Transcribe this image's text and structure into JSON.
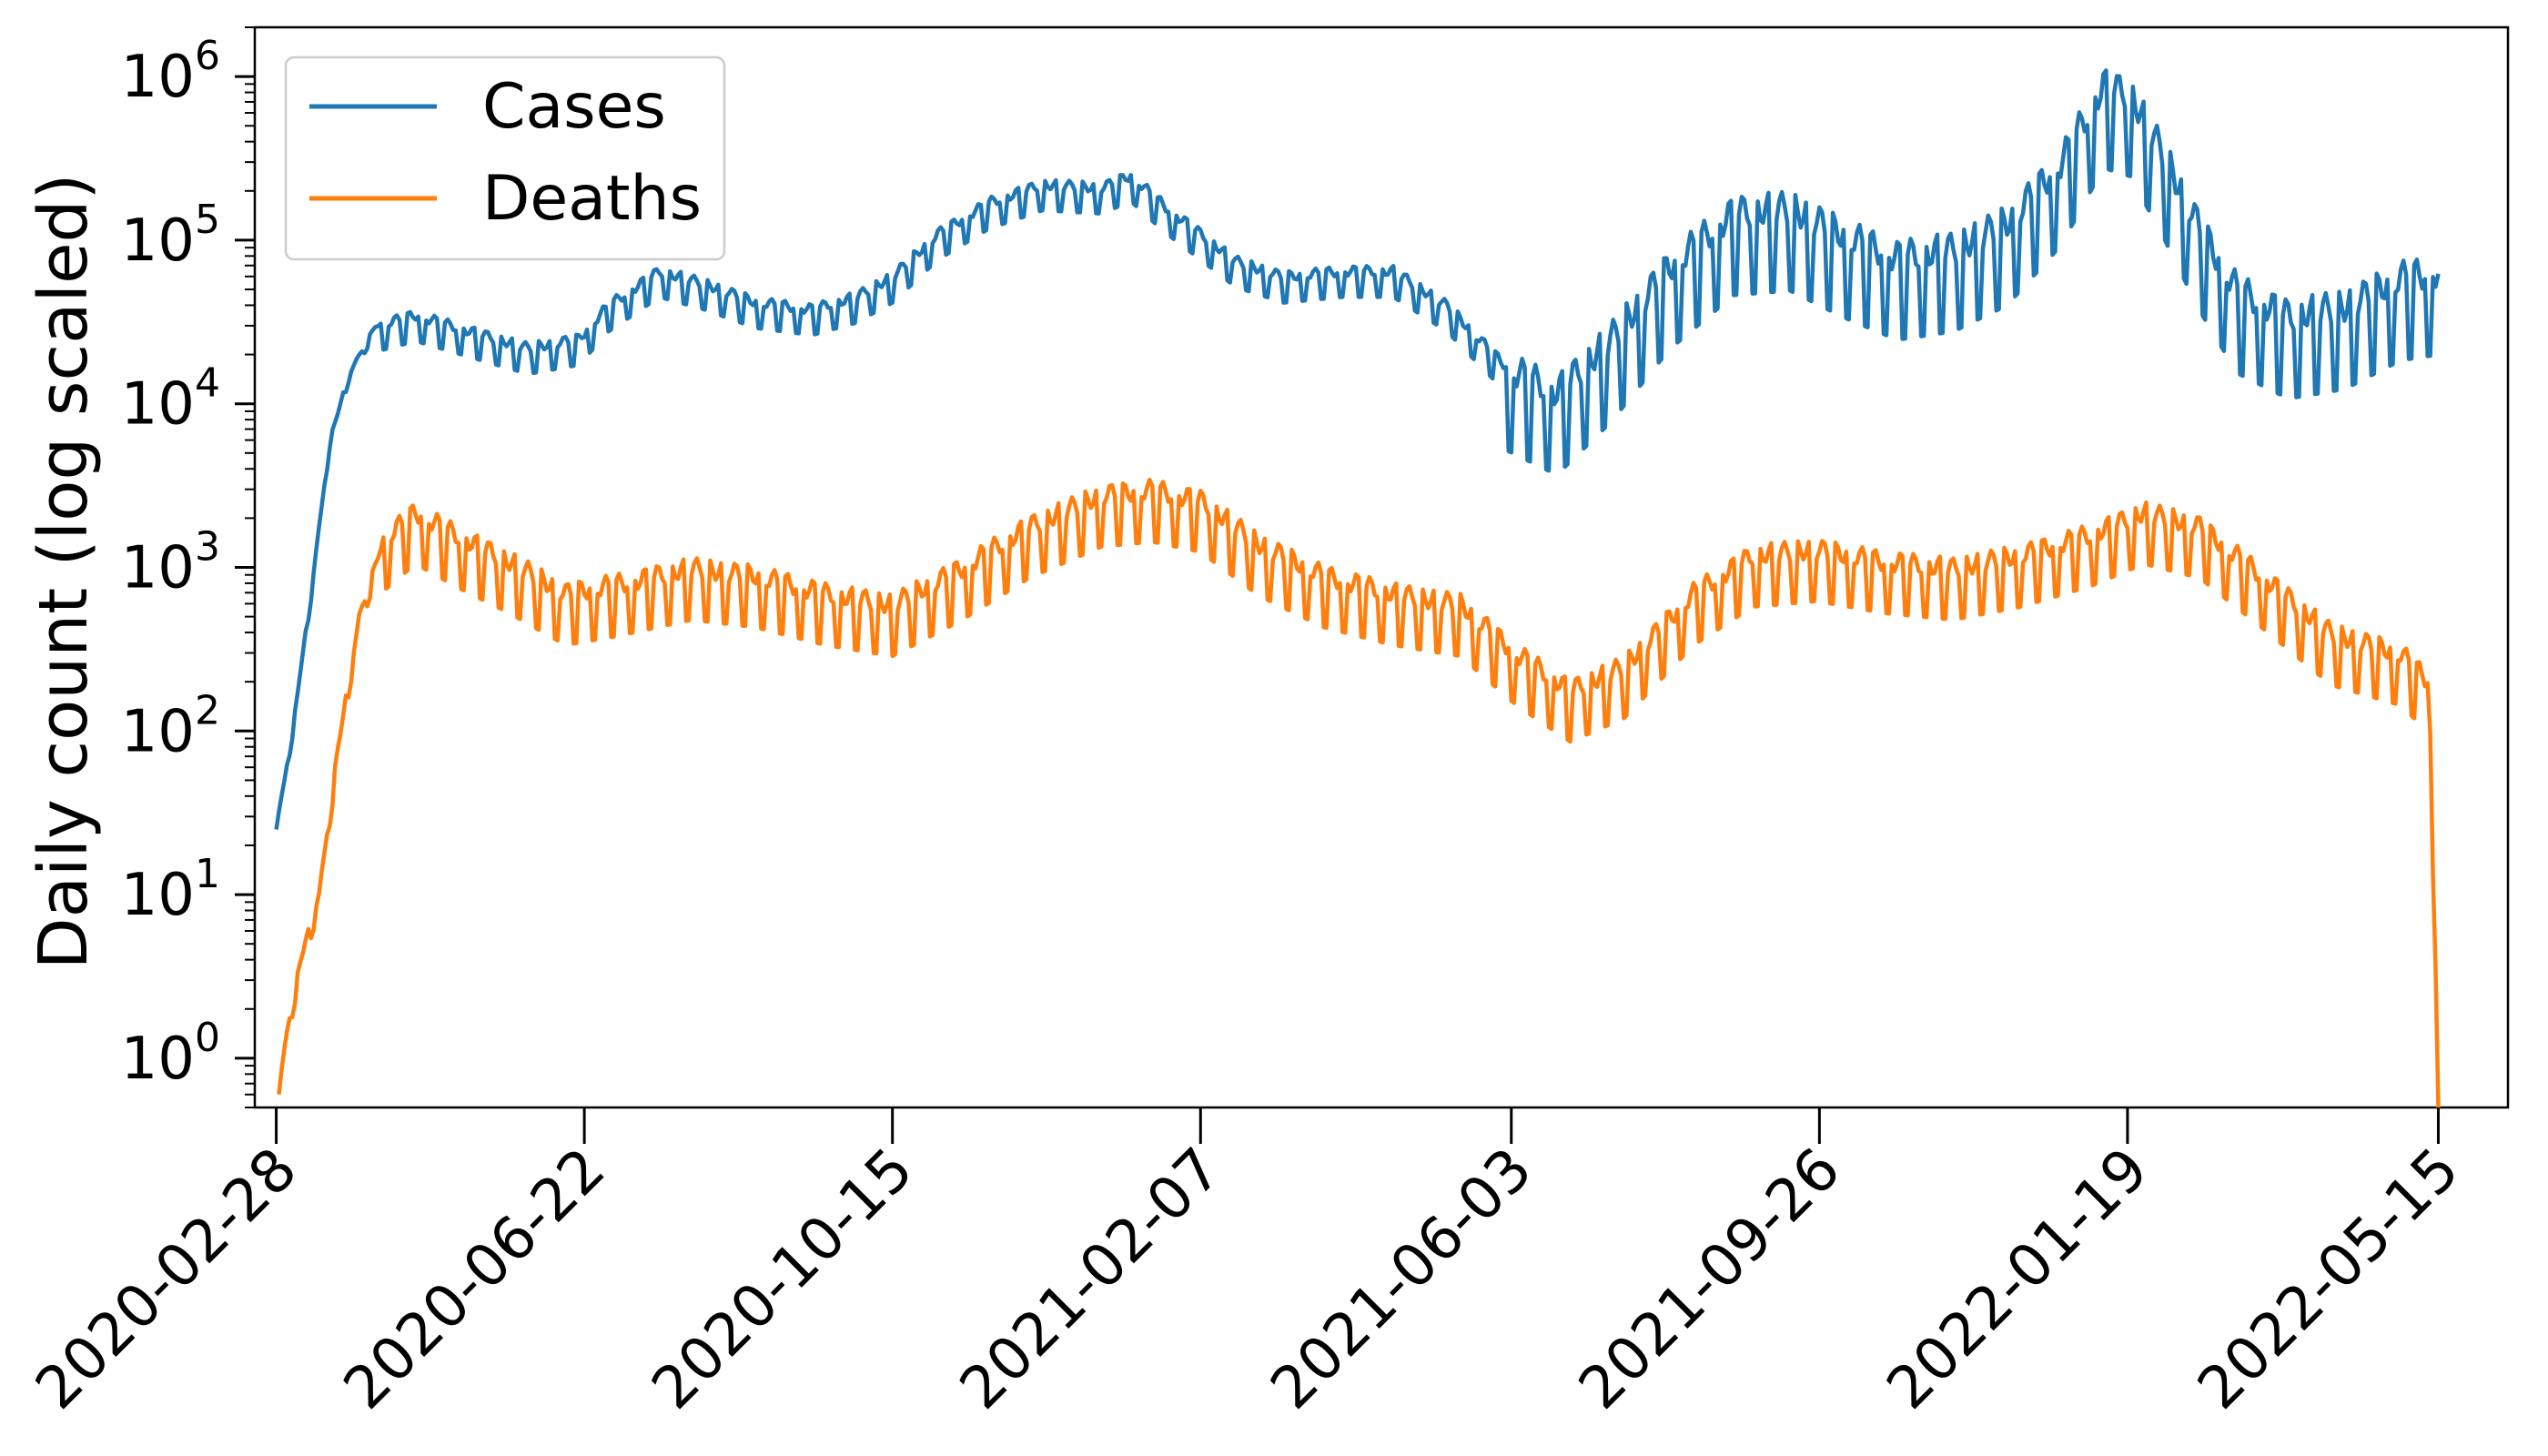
{
  "chart_data": {
    "type": "line",
    "ylabel": "Daily count (log scaled)",
    "xlabel": "",
    "y_scale": "log",
    "ylim": [
      0.5,
      2000000
    ],
    "xlim": [
      "2020-02-20",
      "2022-06-10"
    ],
    "x_ticks": [
      "2020-02-28",
      "2020-06-22",
      "2020-10-15",
      "2021-02-07",
      "2021-06-03",
      "2021-09-26",
      "2022-01-19",
      "2022-05-15"
    ],
    "y_ticks": [
      {
        "value": 1,
        "base": "10",
        "exp": "0"
      },
      {
        "value": 10,
        "base": "10",
        "exp": "1"
      },
      {
        "value": 100,
        "base": "10",
        "exp": "2"
      },
      {
        "value": 1000,
        "base": "10",
        "exp": "3"
      },
      {
        "value": 10000,
        "base": "10",
        "exp": "4"
      },
      {
        "value": 100000,
        "base": "10",
        "exp": "5"
      },
      {
        "value": 1000000,
        "base": "10",
        "exp": "6"
      }
    ],
    "grid": false,
    "legend_position": "top-left",
    "series": [
      {
        "name": "Cases",
        "color": "#1f77b4",
        "points": [
          [
            "2020-02-28",
            25
          ],
          [
            "2020-03-05",
            100
          ],
          [
            "2020-03-12",
            700
          ],
          [
            "2020-03-19",
            6000
          ],
          [
            "2020-03-26",
            15000
          ],
          [
            "2020-04-05",
            30000
          ],
          [
            "2020-04-20",
            35000
          ],
          [
            "2020-05-10",
            28000
          ],
          [
            "2020-06-01",
            22000
          ],
          [
            "2020-06-20",
            25000
          ],
          [
            "2020-07-01",
            40000
          ],
          [
            "2020-07-20",
            65000
          ],
          [
            "2020-08-05",
            55000
          ],
          [
            "2020-08-25",
            42000
          ],
          [
            "2020-09-15",
            38000
          ],
          [
            "2020-10-01",
            45000
          ],
          [
            "2020-10-15",
            60000
          ],
          [
            "2020-11-01",
            110000
          ],
          [
            "2020-11-20",
            170000
          ],
          [
            "2020-12-10",
            220000
          ],
          [
            "2021-01-01",
            210000
          ],
          [
            "2021-01-12",
            250000
          ],
          [
            "2021-01-25",
            160000
          ],
          [
            "2021-02-07",
            110000
          ],
          [
            "2021-02-20",
            75000
          ],
          [
            "2021-03-10",
            60000
          ],
          [
            "2021-04-01",
            65000
          ],
          [
            "2021-04-20",
            65000
          ],
          [
            "2021-05-10",
            40000
          ],
          [
            "2021-06-01",
            17000
          ],
          [
            "2021-06-20",
            12000
          ],
          [
            "2021-07-10",
            25000
          ],
          [
            "2021-08-01",
            70000
          ],
          [
            "2021-08-25",
            150000
          ],
          [
            "2021-09-15",
            160000
          ],
          [
            "2021-10-05",
            110000
          ],
          [
            "2021-10-25",
            80000
          ],
          [
            "2021-11-15",
            90000
          ],
          [
            "2021-12-05",
            130000
          ],
          [
            "2021-12-25",
            300000
          ],
          [
            "2022-01-10",
            900000
          ],
          [
            "2022-01-20",
            800000
          ],
          [
            "2022-02-01",
            350000
          ],
          [
            "2022-02-15",
            120000
          ],
          [
            "2022-03-01",
            50000
          ],
          [
            "2022-03-20",
            35000
          ],
          [
            "2022-04-10",
            40000
          ],
          [
            "2022-05-01",
            60000
          ],
          [
            "2022-05-15",
            65000
          ]
        ]
      },
      {
        "name": "Deaths",
        "color": "#ff7f0e",
        "points": [
          [
            "2020-02-29",
            0.6
          ],
          [
            "2020-03-03",
            1.5
          ],
          [
            "2020-03-08",
            4
          ],
          [
            "2020-03-15",
            10
          ],
          [
            "2020-03-22",
            80
          ],
          [
            "2020-03-30",
            500
          ],
          [
            "2020-04-08",
            1500
          ],
          [
            "2020-04-20",
            2200
          ],
          [
            "2020-05-05",
            1600
          ],
          [
            "2020-05-25",
            1100
          ],
          [
            "2020-06-15",
            700
          ],
          [
            "2020-07-05",
            800
          ],
          [
            "2020-08-01",
            1000
          ],
          [
            "2020-08-25",
            900
          ],
          [
            "2020-09-20",
            700
          ],
          [
            "2020-10-15",
            600
          ],
          [
            "2020-11-10",
            1000
          ],
          [
            "2020-12-05",
            1800
          ],
          [
            "2021-01-01",
            2800
          ],
          [
            "2021-01-20",
            3000
          ],
          [
            "2021-02-07",
            2600
          ],
          [
            "2021-03-01",
            1400
          ],
          [
            "2021-03-25",
            900
          ],
          [
            "2021-04-20",
            700
          ],
          [
            "2021-05-15",
            600
          ],
          [
            "2021-06-05",
            300
          ],
          [
            "2021-06-25",
            180
          ],
          [
            "2021-07-15",
            250
          ],
          [
            "2021-08-10",
            700
          ],
          [
            "2021-09-01",
            1200
          ],
          [
            "2021-09-25",
            1300
          ],
          [
            "2021-10-20",
            1100
          ],
          [
            "2021-11-15",
            1000
          ],
          [
            "2021-12-10",
            1200
          ],
          [
            "2022-01-05",
            1600
          ],
          [
            "2022-01-25",
            2200
          ],
          [
            "2022-02-15",
            1800
          ],
          [
            "2022-03-10",
            900
          ],
          [
            "2022-04-05",
            400
          ],
          [
            "2022-05-01",
            300
          ],
          [
            "2022-05-12",
            200
          ],
          [
            "2022-05-15",
            0.5
          ]
        ]
      }
    ]
  }
}
